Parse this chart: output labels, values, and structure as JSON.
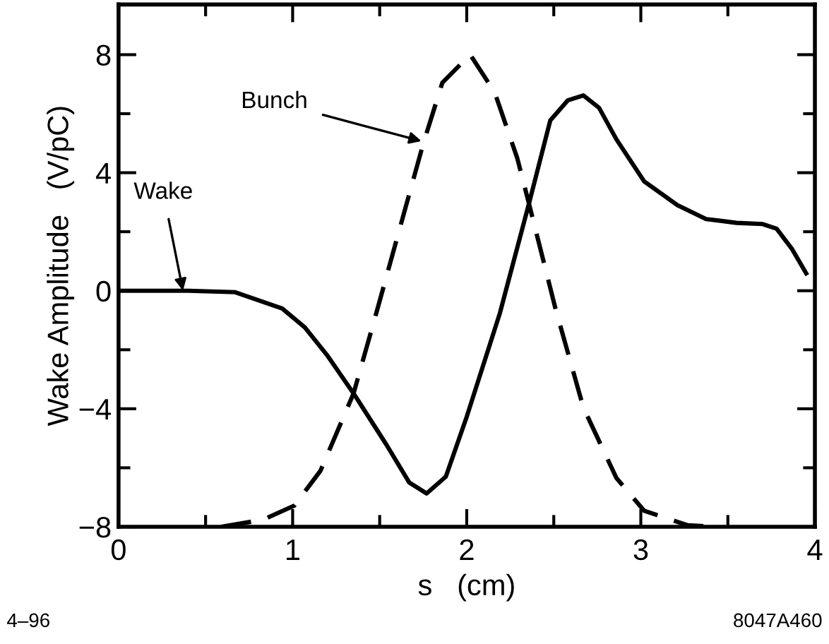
{
  "chart_data": {
    "type": "line",
    "xlabel": "s   (cm)",
    "ylabel": "Wake Amplitude   (V/pC)",
    "xlim": [
      0,
      4
    ],
    "ylim": [
      -8,
      9.7
    ],
    "xticks": [
      0,
      {
        "value": 0.5,
        "label": null
      },
      1,
      {
        "value": 1.5,
        "label": null
      },
      2,
      {
        "value": 2.5,
        "label": null
      },
      3,
      {
        "value": 3.5,
        "label": null
      },
      4
    ],
    "yticks": [
      {
        "value": -8,
        "label": "−8"
      },
      {
        "value": -6,
        "label": null
      },
      {
        "value": -4,
        "label": "−4"
      },
      {
        "value": -2,
        "label": null
      },
      0,
      {
        "value": 2,
        "label": null
      },
      4,
      {
        "value": 6,
        "label": null
      },
      8
    ],
    "grid": false,
    "legend": false,
    "marker": "none",
    "series": [
      {
        "color": "#000000",
        "line_style": "solid",
        "x": [
          0,
          0.4,
          0.67,
          0.94,
          1.07,
          1.2,
          1.35,
          1.54,
          1.67,
          1.77,
          1.88,
          2.0,
          2.19,
          2.36,
          2.48,
          2.58,
          2.67,
          2.76,
          2.86,
          3.02,
          3.21,
          3.375,
          3.55,
          3.7,
          3.78,
          3.87,
          3.95
        ],
        "values": [
          0,
          0,
          -0.05,
          -0.6,
          -1.24,
          -2.2,
          -3.48,
          -5.23,
          -6.5,
          -6.87,
          -6.3,
          -4.27,
          -0.77,
          3.01,
          5.77,
          6.45,
          6.62,
          6.2,
          5.13,
          3.7,
          2.9,
          2.43,
          2.3,
          2.26,
          2.1,
          1.4,
          0.59
        ]
      },
      {
        "color": "#000000",
        "line_style": "dashed",
        "x": [
          0.59,
          0.83,
          1.01,
          1.16,
          1.35,
          1.48,
          1.75,
          1.86,
          2.02,
          2.16,
          2.29,
          2.355,
          2.51,
          2.67,
          2.86,
          3.02,
          3.27,
          3.45
        ],
        "values": [
          -8,
          -7.76,
          -7.28,
          -6.1,
          -3.48,
          -0.77,
          4.98,
          7.05,
          8,
          6.73,
          4.5,
          3.01,
          -0.61,
          -3.96,
          -6.35,
          -7.46,
          -7.95,
          -8
        ]
      }
    ],
    "annotations": [
      {
        "text": "Wake",
        "x": 0.37,
        "y": 0
      },
      {
        "text": "Bunch",
        "x": 1.74,
        "y": 5.07
      },
      "4–96",
      "8047A460"
    ]
  }
}
